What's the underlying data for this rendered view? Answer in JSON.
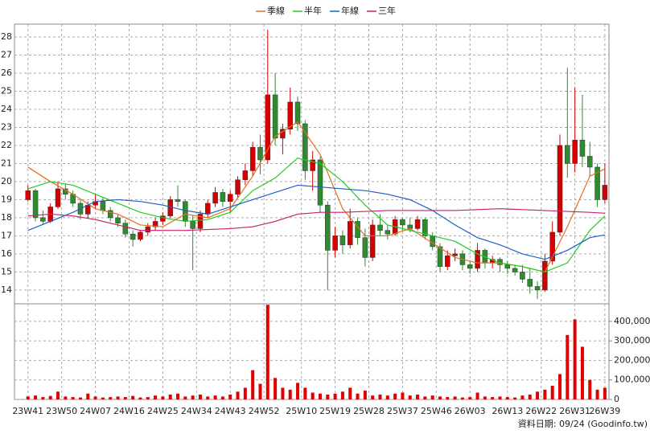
{
  "chart_data": {
    "type": "candlestick",
    "legend": "top",
    "grid": true,
    "up_color": "#d40000",
    "down_color": "#2e8b2e",
    "x": [
      0,
      2,
      4,
      6,
      8,
      10,
      12,
      14,
      16,
      18,
      20,
      22,
      24,
      26,
      28,
      30,
      32,
      34,
      36,
      38,
      40,
      42,
      44,
      46,
      48,
      50,
      52,
      54,
      56,
      58,
      60,
      62,
      64,
      66,
      68,
      70,
      72,
      74,
      76,
      78,
      80,
      82,
      84,
      86,
      88,
      90,
      92,
      94,
      96,
      98,
      100,
      102,
      104,
      106,
      108,
      110,
      112,
      114,
      116,
      118,
      120,
      122,
      124,
      126,
      128,
      130,
      132,
      134,
      136,
      138,
      140,
      142,
      144,
      146,
      148,
      150,
      152,
      154
    ],
    "open": [
      19.0,
      19.5,
      18.0,
      17.8,
      18.6,
      19.6,
      19.3,
      18.8,
      18.2,
      18.7,
      18.9,
      18.4,
      18.0,
      17.7,
      17.1,
      16.8,
      17.2,
      17.5,
      17.8,
      18.1,
      19.0,
      18.9,
      17.8,
      17.4,
      18.2,
      18.8,
      19.4,
      18.9,
      19.3,
      20.1,
      20.6,
      21.9,
      21.2,
      24.8,
      22.4,
      22.9,
      24.4,
      23.2,
      20.6,
      21.2,
      18.7,
      16.2,
      17.0,
      16.5,
      17.8,
      16.9,
      15.8,
      17.6,
      17.3,
      17.1,
      17.9,
      17.6,
      17.4,
      17.9,
      17.0,
      16.4,
      15.3,
      15.9,
      16.0,
      15.4,
      15.2,
      16.2,
      15.5,
      15.7,
      15.4,
      15.2,
      15.0,
      14.6,
      14.2,
      14.0,
      15.6,
      17.2,
      22.0,
      21.0,
      22.3,
      21.4,
      20.8,
      19.0
    ],
    "high": [
      19.8,
      19.6,
      18.4,
      18.8,
      20.0,
      19.9,
      19.5,
      19.0,
      18.9,
      19.3,
      19.1,
      18.6,
      18.2,
      17.9,
      17.3,
      17.3,
      17.7,
      18.0,
      18.3,
      19.2,
      19.8,
      19.0,
      18.1,
      18.4,
      19.0,
      19.7,
      19.6,
      19.5,
      20.3,
      21.0,
      22.2,
      22.6,
      28.4,
      26.0,
      23.2,
      25.2,
      24.7,
      23.4,
      21.7,
      21.4,
      18.9,
      17.5,
      17.3,
      18.5,
      18.0,
      17.4,
      17.9,
      18.2,
      17.6,
      18.1,
      18.0,
      18.0,
      18.1,
      18.0,
      17.2,
      16.6,
      16.2,
      16.3,
      16.2,
      15.6,
      16.6,
      16.3,
      15.9,
      15.8,
      15.6,
      15.4,
      15.4,
      15.2,
      14.5,
      16.0,
      17.8,
      22.6,
      26.3,
      25.2,
      24.8,
      22.2,
      21.0,
      21.0
    ],
    "low": [
      18.9,
      17.8,
      17.6,
      17.7,
      18.5,
      19.0,
      18.6,
      17.9,
      18.0,
      18.5,
      18.2,
      17.8,
      17.5,
      16.9,
      16.4,
      16.7,
      17.0,
      17.3,
      17.6,
      18.0,
      18.6,
      17.5,
      15.1,
      17.2,
      18.0,
      18.6,
      18.6,
      18.3,
      19.1,
      19.8,
      20.3,
      20.4,
      21.0,
      22.0,
      21.5,
      22.6,
      22.8,
      20.1,
      19.5,
      18.3,
      14.0,
      15.8,
      16.0,
      16.3,
      16.5,
      15.3,
      15.6,
      17.0,
      16.8,
      17.0,
      17.3,
      17.2,
      17.3,
      16.8,
      16.2,
      15.0,
      15.1,
      15.6,
      15.1,
      14.9,
      15.0,
      15.2,
      15.2,
      15.0,
      14.9,
      14.8,
      14.4,
      13.8,
      13.5,
      13.9,
      15.4,
      17.0,
      20.2,
      20.5,
      20.8,
      20.3,
      18.6,
      18.8
    ],
    "close": [
      19.5,
      18.0,
      17.8,
      18.6,
      19.6,
      19.3,
      18.8,
      18.2,
      18.7,
      18.9,
      18.4,
      18.0,
      17.7,
      17.1,
      16.8,
      17.2,
      17.5,
      17.8,
      18.1,
      19.0,
      18.9,
      17.8,
      17.4,
      18.2,
      18.8,
      19.4,
      18.9,
      19.3,
      20.1,
      20.6,
      21.9,
      21.2,
      24.8,
      22.4,
      22.9,
      24.4,
      23.2,
      20.6,
      21.2,
      18.7,
      16.2,
      17.0,
      16.5,
      17.8,
      16.9,
      15.8,
      17.6,
      17.3,
      17.1,
      17.9,
      17.6,
      17.4,
      17.9,
      17.0,
      16.4,
      15.3,
      15.9,
      16.0,
      15.4,
      15.2,
      16.2,
      15.5,
      15.7,
      15.4,
      15.2,
      15.0,
      14.6,
      14.2,
      14.0,
      15.6,
      17.2,
      22.0,
      21.0,
      22.3,
      21.4,
      20.8,
      19.0,
      19.8
    ],
    "xlim": [
      -3.6,
      155.1
    ],
    "xticks": [
      {
        "value": 0,
        "label": "23W41"
      },
      {
        "value": 9,
        "label": "23W50"
      },
      {
        "value": 18,
        "label": "24W07"
      },
      {
        "value": 27,
        "label": "24W16"
      },
      {
        "value": 36,
        "label": "24W25"
      },
      {
        "value": 45,
        "label": "24W34"
      },
      {
        "value": 54,
        "label": "24W43"
      },
      {
        "value": 63,
        "label": "24W52"
      },
      {
        "value": 73,
        "label": "25W10"
      },
      {
        "value": 82,
        "label": "25W19"
      },
      {
        "value": 91,
        "label": "25W28"
      },
      {
        "value": 100,
        "label": "25W37"
      },
      {
        "value": 109,
        "label": "25W46"
      },
      {
        "value": 118,
        "label": "26W03"
      },
      {
        "value": 128,
        "label": "26W13"
      },
      {
        "value": 137,
        "label": "26W22"
      },
      {
        "value": 146,
        "label": "26W31"
      },
      {
        "value": 154,
        "label": "26W39"
      }
    ],
    "ylim": [
      13.24,
      28.71
    ],
    "yticks": [
      14,
      15,
      16,
      17,
      18,
      19,
      20,
      21,
      22,
      23,
      24,
      25,
      26,
      27,
      28
    ],
    "series": [
      {
        "name": "季線",
        "color": "#e07020",
        "x": [
          0,
          6,
          12,
          18,
          24,
          30,
          36,
          42,
          48,
          54,
          60,
          66,
          72,
          78,
          84,
          90,
          96,
          102,
          108,
          114,
          120,
          126,
          132,
          138,
          144,
          150,
          154
        ],
        "values": [
          20.8,
          20.0,
          19.3,
          18.5,
          18.2,
          17.6,
          17.5,
          18.2,
          18.0,
          18.5,
          20.3,
          22.5,
          23.3,
          21.5,
          18.5,
          17.0,
          17.0,
          17.4,
          16.6,
          15.8,
          15.5,
          15.5,
          15.3,
          15.0,
          17.5,
          20.3,
          20.7
        ]
      },
      {
        "name": "半年",
        "color": "#22cc22",
        "x": [
          0,
          6,
          12,
          18,
          24,
          30,
          36,
          42,
          48,
          54,
          60,
          66,
          72,
          78,
          84,
          90,
          96,
          102,
          108,
          114,
          120,
          126,
          132,
          138,
          144,
          150,
          154
        ],
        "values": [
          19.6,
          20.0,
          19.8,
          19.3,
          18.8,
          18.3,
          18.0,
          17.8,
          17.9,
          18.3,
          19.5,
          20.2,
          21.3,
          21.0,
          20.0,
          18.7,
          17.6,
          17.3,
          17.0,
          16.7,
          16.0,
          15.5,
          15.3,
          15.0,
          15.5,
          17.3,
          18.1
        ]
      },
      {
        "name": "年線",
        "color": "#1a5fc8",
        "x": [
          0,
          6,
          12,
          18,
          24,
          30,
          36,
          42,
          48,
          54,
          60,
          66,
          72,
          78,
          84,
          90,
          96,
          102,
          108,
          114,
          120,
          126,
          132,
          138,
          144,
          150,
          154
        ],
        "values": [
          17.3,
          17.8,
          18.3,
          18.9,
          19.0,
          18.9,
          18.7,
          18.4,
          18.2,
          18.6,
          19.0,
          19.4,
          19.8,
          19.7,
          19.6,
          19.5,
          19.3,
          19.0,
          18.4,
          17.6,
          16.9,
          16.5,
          16.0,
          15.7,
          16.2,
          16.9,
          17.05
        ]
      },
      {
        "name": "三年",
        "color": "#c8206a",
        "x": [
          0,
          6,
          12,
          18,
          24,
          30,
          36,
          42,
          48,
          54,
          60,
          66,
          72,
          78,
          84,
          90,
          96,
          102,
          108,
          114,
          120,
          126,
          132,
          138,
          144,
          150,
          154
        ],
        "values": [
          18.1,
          18.2,
          18.1,
          17.9,
          17.6,
          17.3,
          17.3,
          17.3,
          17.35,
          17.4,
          17.5,
          17.8,
          18.2,
          18.3,
          18.3,
          18.35,
          18.4,
          18.4,
          18.4,
          18.4,
          18.45,
          18.5,
          18.45,
          18.4,
          18.35,
          18.3,
          18.25
        ]
      }
    ],
    "volume": {
      "color": "#e00000",
      "ylim": [
        0,
        490000
      ],
      "yticks": [
        0,
        {
          "value": 100000,
          "label": "100,000"
        },
        {
          "value": 200000,
          "label": "200,000"
        },
        {
          "value": 300000,
          "label": "300,000"
        },
        {
          "value": 400000,
          "label": "400,000"
        }
      ],
      "values": [
        15000,
        20000,
        12000,
        18000,
        40000,
        15000,
        12000,
        10000,
        30000,
        15000,
        10000,
        12000,
        15000,
        12000,
        18000,
        10000,
        12000,
        20000,
        15000,
        25000,
        30000,
        15000,
        20000,
        25000,
        15000,
        20000,
        15000,
        25000,
        40000,
        60000,
        150000,
        80000,
        485000,
        110000,
        60000,
        50000,
        85000,
        60000,
        35000,
        30000,
        25000,
        30000,
        40000,
        60000,
        30000,
        45000,
        20000,
        25000,
        20000,
        30000,
        35000,
        20000,
        25000,
        15000,
        20000,
        15000,
        12000,
        15000,
        10000,
        12000,
        35000,
        15000,
        12000,
        15000,
        12000,
        10000,
        20000,
        25000,
        40000,
        50000,
        70000,
        130000,
        330000,
        410000,
        270000,
        100000,
        50000,
        60000
      ]
    },
    "note": "資料日期: 09/24  (Goodinfo.tw)"
  }
}
